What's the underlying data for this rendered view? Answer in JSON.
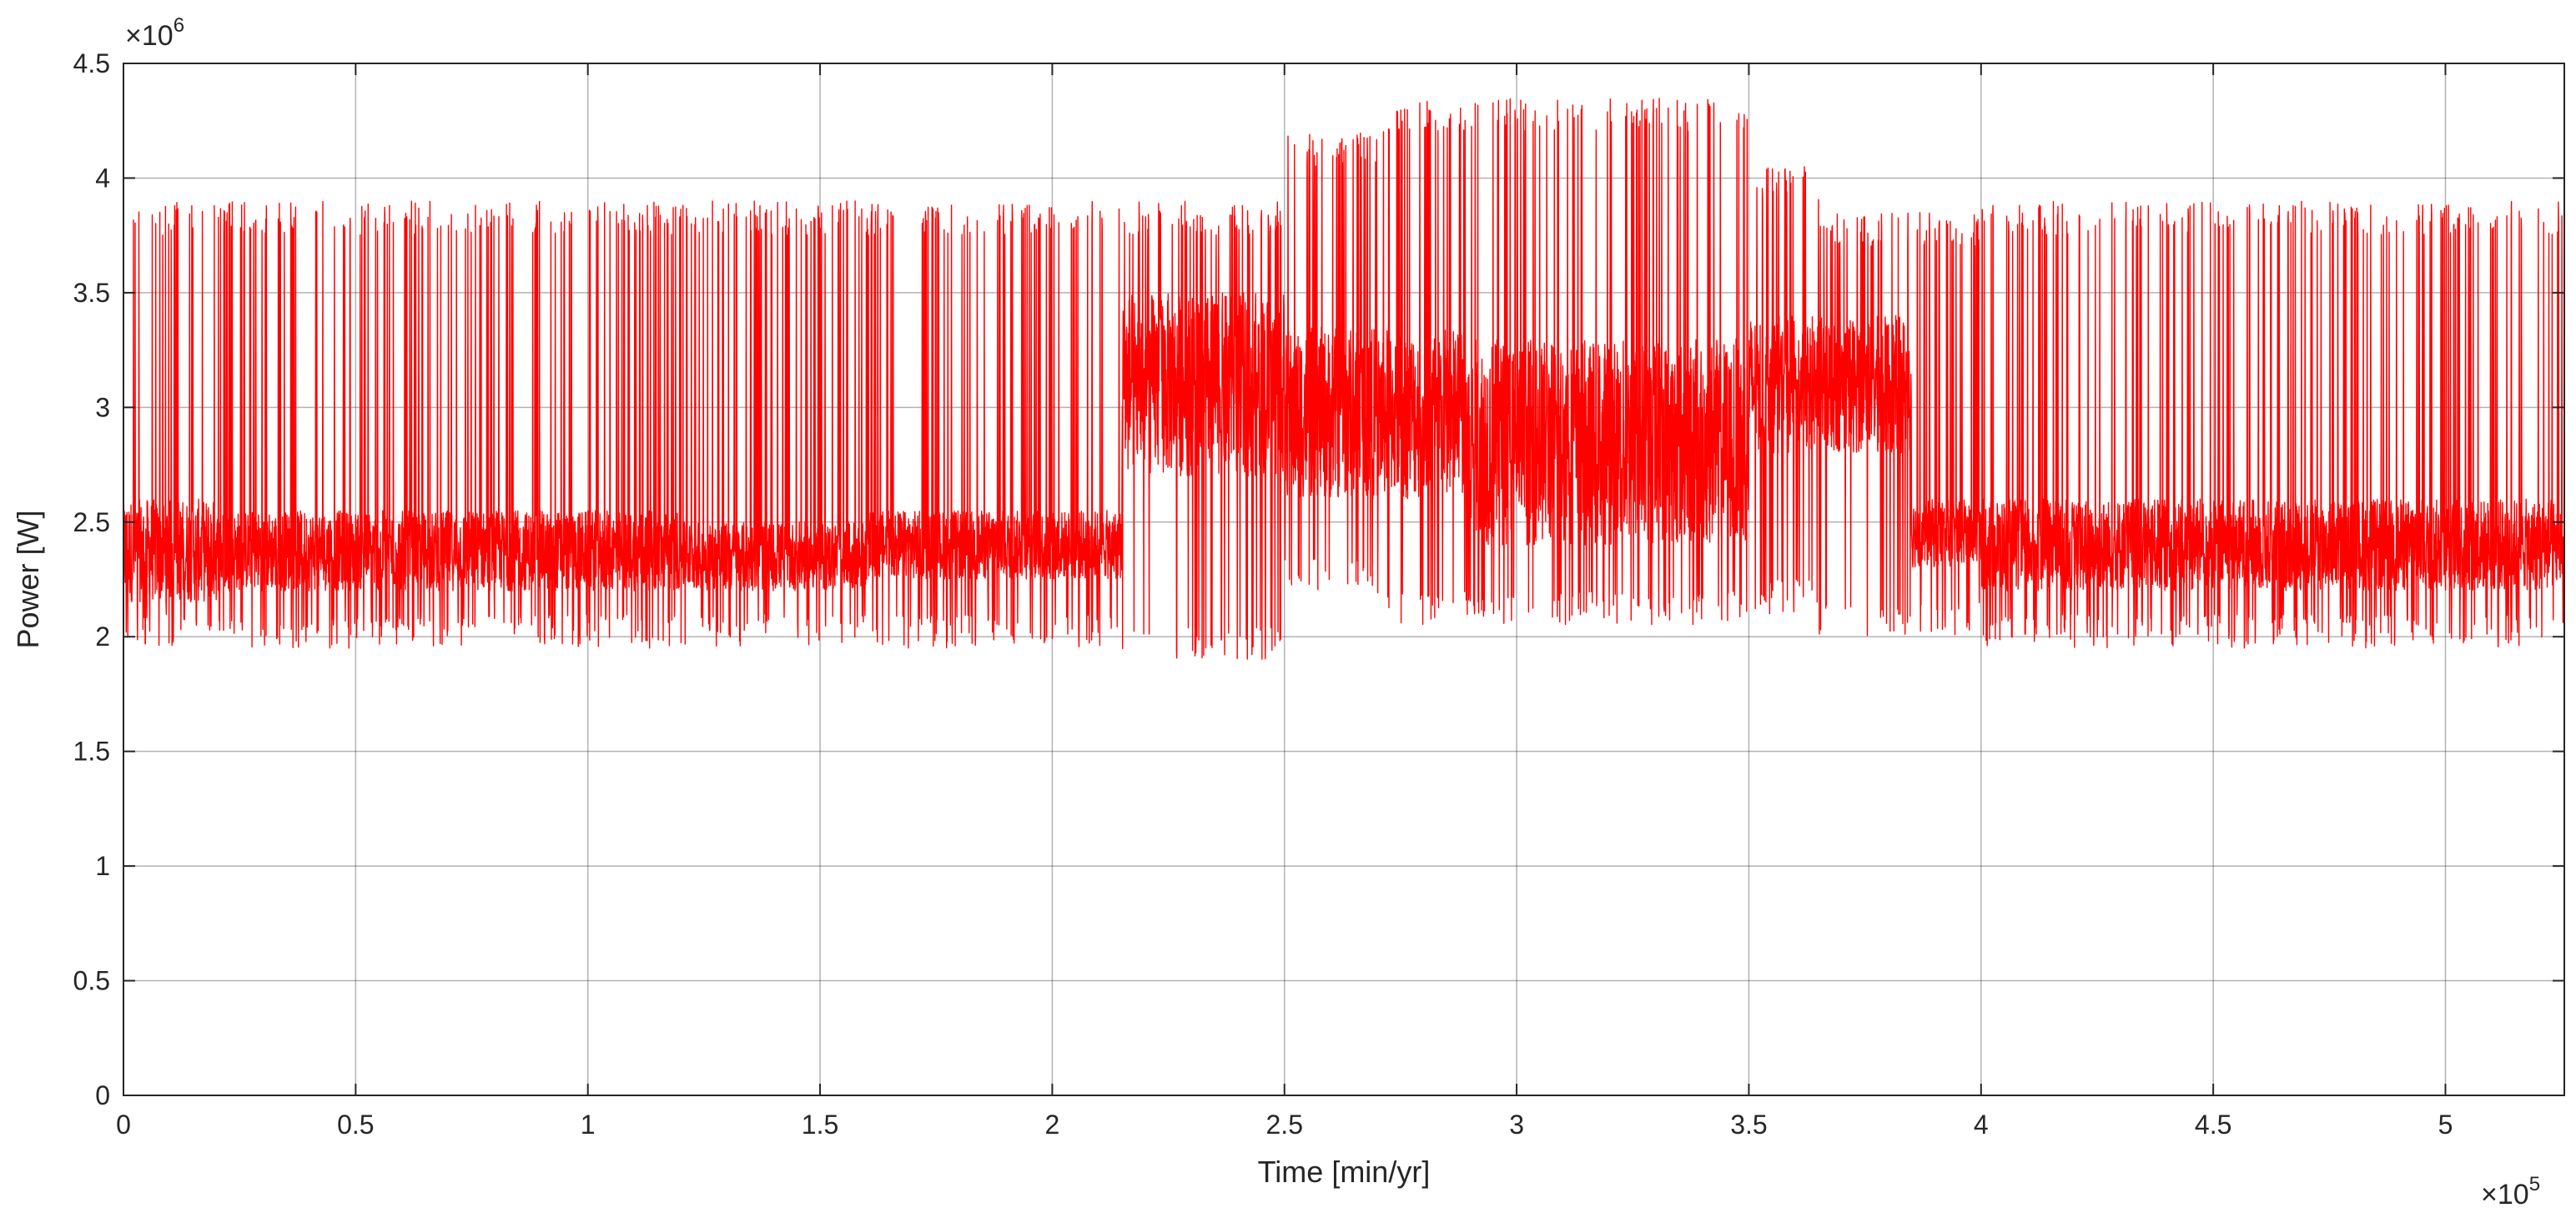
{
  "chart_data": {
    "type": "line",
    "title": "",
    "xlabel": "Time [min/yr]",
    "ylabel": "Power [W]",
    "x_exponent_label": "×10",
    "x_exponent_power": "5",
    "y_exponent_label": "×10",
    "y_exponent_power": "6",
    "xlim": [
      0,
      5.256
    ],
    "ylim": [
      0,
      4.5
    ],
    "x_ticks": [
      "0",
      "0.5",
      "1",
      "1.5",
      "2",
      "2.5",
      "3",
      "3.5",
      "4",
      "4.5",
      "5"
    ],
    "x_tick_values": [
      0,
      0.5,
      1,
      1.5,
      2,
      2.5,
      3,
      3.5,
      4,
      4.5,
      5
    ],
    "y_ticks": [
      "0",
      "0.5",
      "1",
      "1.5",
      "2",
      "2.5",
      "3",
      "3.5",
      "4",
      "4.5"
    ],
    "y_tick_values": [
      0,
      0.5,
      1,
      1.5,
      2,
      2.5,
      3,
      3.5,
      4,
      4.5
    ],
    "grid": true,
    "series": [
      {
        "color": "#ff0000",
        "note_x_units": "×10^5 min",
        "note_y_units": "×10^6 W",
        "base_band": [
          {
            "x": [
              0.0,
              0.2
            ],
            "low": 2.15,
            "high": 2.6
          },
          {
            "x": [
              0.2,
              1.2
            ],
            "low": 2.2,
            "high": 2.55
          },
          {
            "x": [
              1.2,
              1.6
            ],
            "low": 2.2,
            "high": 2.5
          },
          {
            "x": [
              1.6,
              2.15
            ],
            "low": 2.25,
            "high": 2.55
          },
          {
            "x": [
              2.15,
              2.5
            ],
            "low": 2.7,
            "high": 3.5
          },
          {
            "x": [
              2.5,
              2.9
            ],
            "low": 2.6,
            "high": 3.35
          },
          {
            "x": [
              2.9,
              3.5
            ],
            "low": 2.4,
            "high": 3.3
          },
          {
            "x": [
              3.5,
              3.85
            ],
            "low": 2.8,
            "high": 3.4
          },
          {
            "x": [
              3.85,
              4.0
            ],
            "low": 2.3,
            "high": 2.6
          },
          {
            "x": [
              4.0,
              5.256
            ],
            "low": 2.2,
            "high": 2.6
          }
        ],
        "spike_envelope": [
          {
            "x": [
              0.0,
              2.15
            ],
            "min": 1.95,
            "max": 3.9
          },
          {
            "x": [
              2.15,
              2.5
            ],
            "min": 1.9,
            "max": 3.9
          },
          {
            "x": [
              2.5,
              2.7
            ],
            "min": 2.2,
            "max": 4.2
          },
          {
            "x": [
              2.7,
              3.5
            ],
            "min": 2.05,
            "max": 4.35
          },
          {
            "x": [
              3.5,
              3.65
            ],
            "min": 2.1,
            "max": 4.05
          },
          {
            "x": [
              3.65,
              4.0
            ],
            "min": 2.0,
            "max": 3.85
          },
          {
            "x": [
              4.0,
              5.256
            ],
            "min": 1.95,
            "max": 3.9
          }
        ]
      }
    ]
  }
}
